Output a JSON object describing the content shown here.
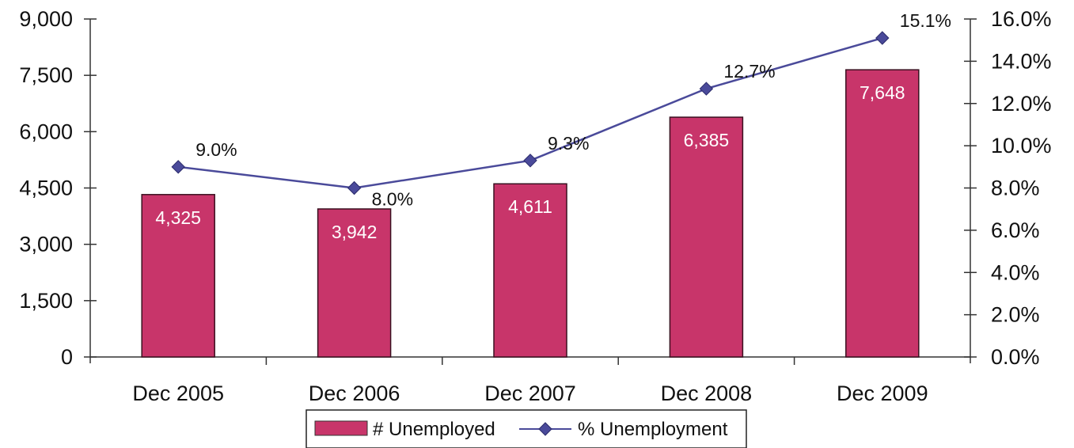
{
  "chart_data": {
    "type": "bar",
    "categories": [
      "Dec 2005",
      "Dec 2006",
      "Dec 2007",
      "Dec 2008",
      "Dec 2009"
    ],
    "series": [
      {
        "name": "# Unemployed",
        "type": "bar",
        "axis": "left",
        "values": [
          4325,
          3942,
          4611,
          6385,
          7648
        ],
        "labels": [
          "4,325",
          "3,942",
          "4,611",
          "6,385",
          "7,648"
        ],
        "color": "#c8356a"
      },
      {
        "name": "% Unemployment",
        "type": "line",
        "axis": "right",
        "values": [
          9.0,
          8.0,
          9.3,
          12.7,
          15.1
        ],
        "labels": [
          "9.0%",
          "8.0%",
          "9.3%",
          "12.7%",
          "15.1%"
        ],
        "color": "#4a4a9a"
      }
    ],
    "y_left": {
      "range": [
        0,
        9000
      ],
      "ticks": [
        0,
        1500,
        3000,
        4500,
        6000,
        7500,
        9000
      ],
      "tick_labels": [
        "0",
        "1,500",
        "3,000",
        "4,500",
        "6,000",
        "7,500",
        "9,000"
      ]
    },
    "y_right": {
      "range": [
        0,
        16
      ],
      "ticks": [
        0,
        2,
        4,
        6,
        8,
        10,
        12,
        14,
        16
      ],
      "tick_labels": [
        "0.0%",
        "2.0%",
        "4.0%",
        "6.0%",
        "8.0%",
        "10.0%",
        "12.0%",
        "14.0%",
        "16.0%"
      ]
    },
    "grid": false,
    "legend": "bottom-center"
  }
}
